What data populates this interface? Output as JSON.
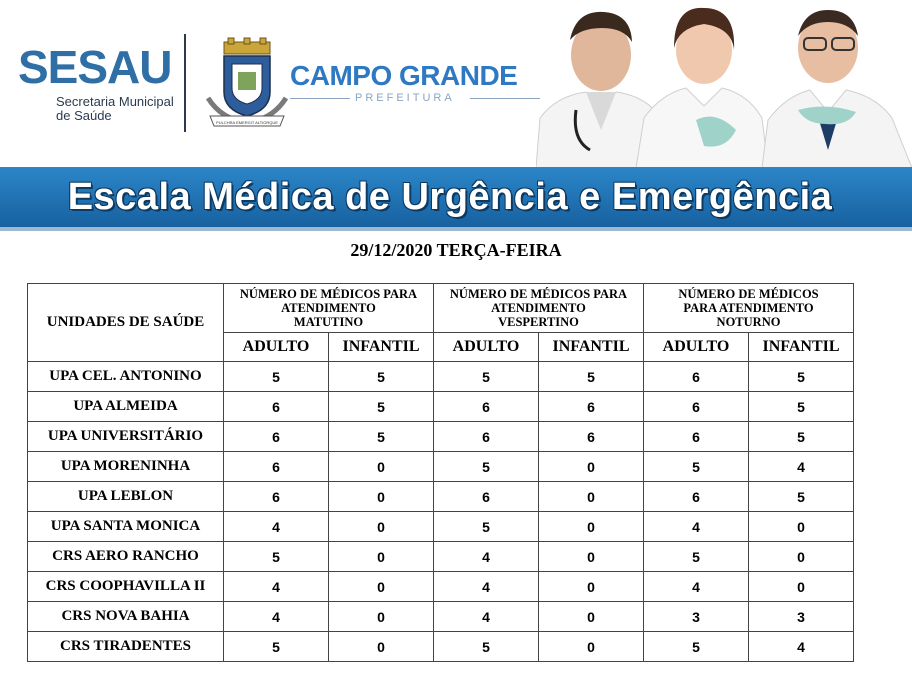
{
  "header": {
    "sesau_logo": "SESAU",
    "sesau_sub_line1": "Secretaria Municipal",
    "sesau_sub_line2": "de Saúde",
    "city_title": "CAMPO GRANDE",
    "city_sub": "PREFEITURA",
    "crest_motto": "PULCHRA EMERGIT ALTIORQUE"
  },
  "banner": {
    "title": "Escala Médica de Urgência e Emergência"
  },
  "date": "29/12/2020 TERÇA-FEIRA",
  "table": {
    "unit_header": "UNIDADES DE SAÚDE",
    "groups": [
      {
        "line1": "NÚMERO DE MÉDICOS PARA",
        "line2": "ATENDIMENTO",
        "line3": "MATUTINO"
      },
      {
        "line1": "NÚMERO DE MÉDICOS PARA",
        "line2": "ATENDIMENTO",
        "line3": "VESPERTINO"
      },
      {
        "line1": "NÚMERO DE MÉDICOS",
        "line2": "PARA ATENDIMENTO",
        "line3": "NOTURNO"
      }
    ],
    "sub_adult": "ADULTO",
    "sub_child": "INFANTIL",
    "rows": [
      {
        "unit": "UPA CEL. ANTONINO",
        "values": [
          "5",
          "5",
          "5",
          "5",
          "6",
          "5"
        ]
      },
      {
        "unit": "UPA ALMEIDA",
        "values": [
          "6",
          "5",
          "6",
          "6",
          "6",
          "5"
        ]
      },
      {
        "unit": "UPA UNIVERSITÁRIO",
        "values": [
          "6",
          "5",
          "6",
          "6",
          "6",
          "5"
        ]
      },
      {
        "unit": "UPA MORENINHA",
        "values": [
          "6",
          "0",
          "5",
          "0",
          "5",
          "4"
        ]
      },
      {
        "unit": "UPA LEBLON",
        "values": [
          "6",
          "0",
          "6",
          "0",
          "6",
          "5"
        ]
      },
      {
        "unit": "UPA SANTA MONICA",
        "values": [
          "4",
          "0",
          "5",
          "0",
          "4",
          "0"
        ]
      },
      {
        "unit": "CRS AERO RANCHO",
        "values": [
          "5",
          "0",
          "4",
          "0",
          "5",
          "0"
        ]
      },
      {
        "unit": "CRS COOPHAVILLA II",
        "values": [
          "4",
          "0",
          "4",
          "0",
          "4",
          "0"
        ]
      },
      {
        "unit": "CRS NOVA BAHIA",
        "values": [
          "4",
          "0",
          "4",
          "0",
          "3",
          "3"
        ]
      },
      {
        "unit": "CRS TIRADENTES",
        "values": [
          "5",
          "0",
          "5",
          "0",
          "5",
          "4"
        ]
      }
    ]
  }
}
